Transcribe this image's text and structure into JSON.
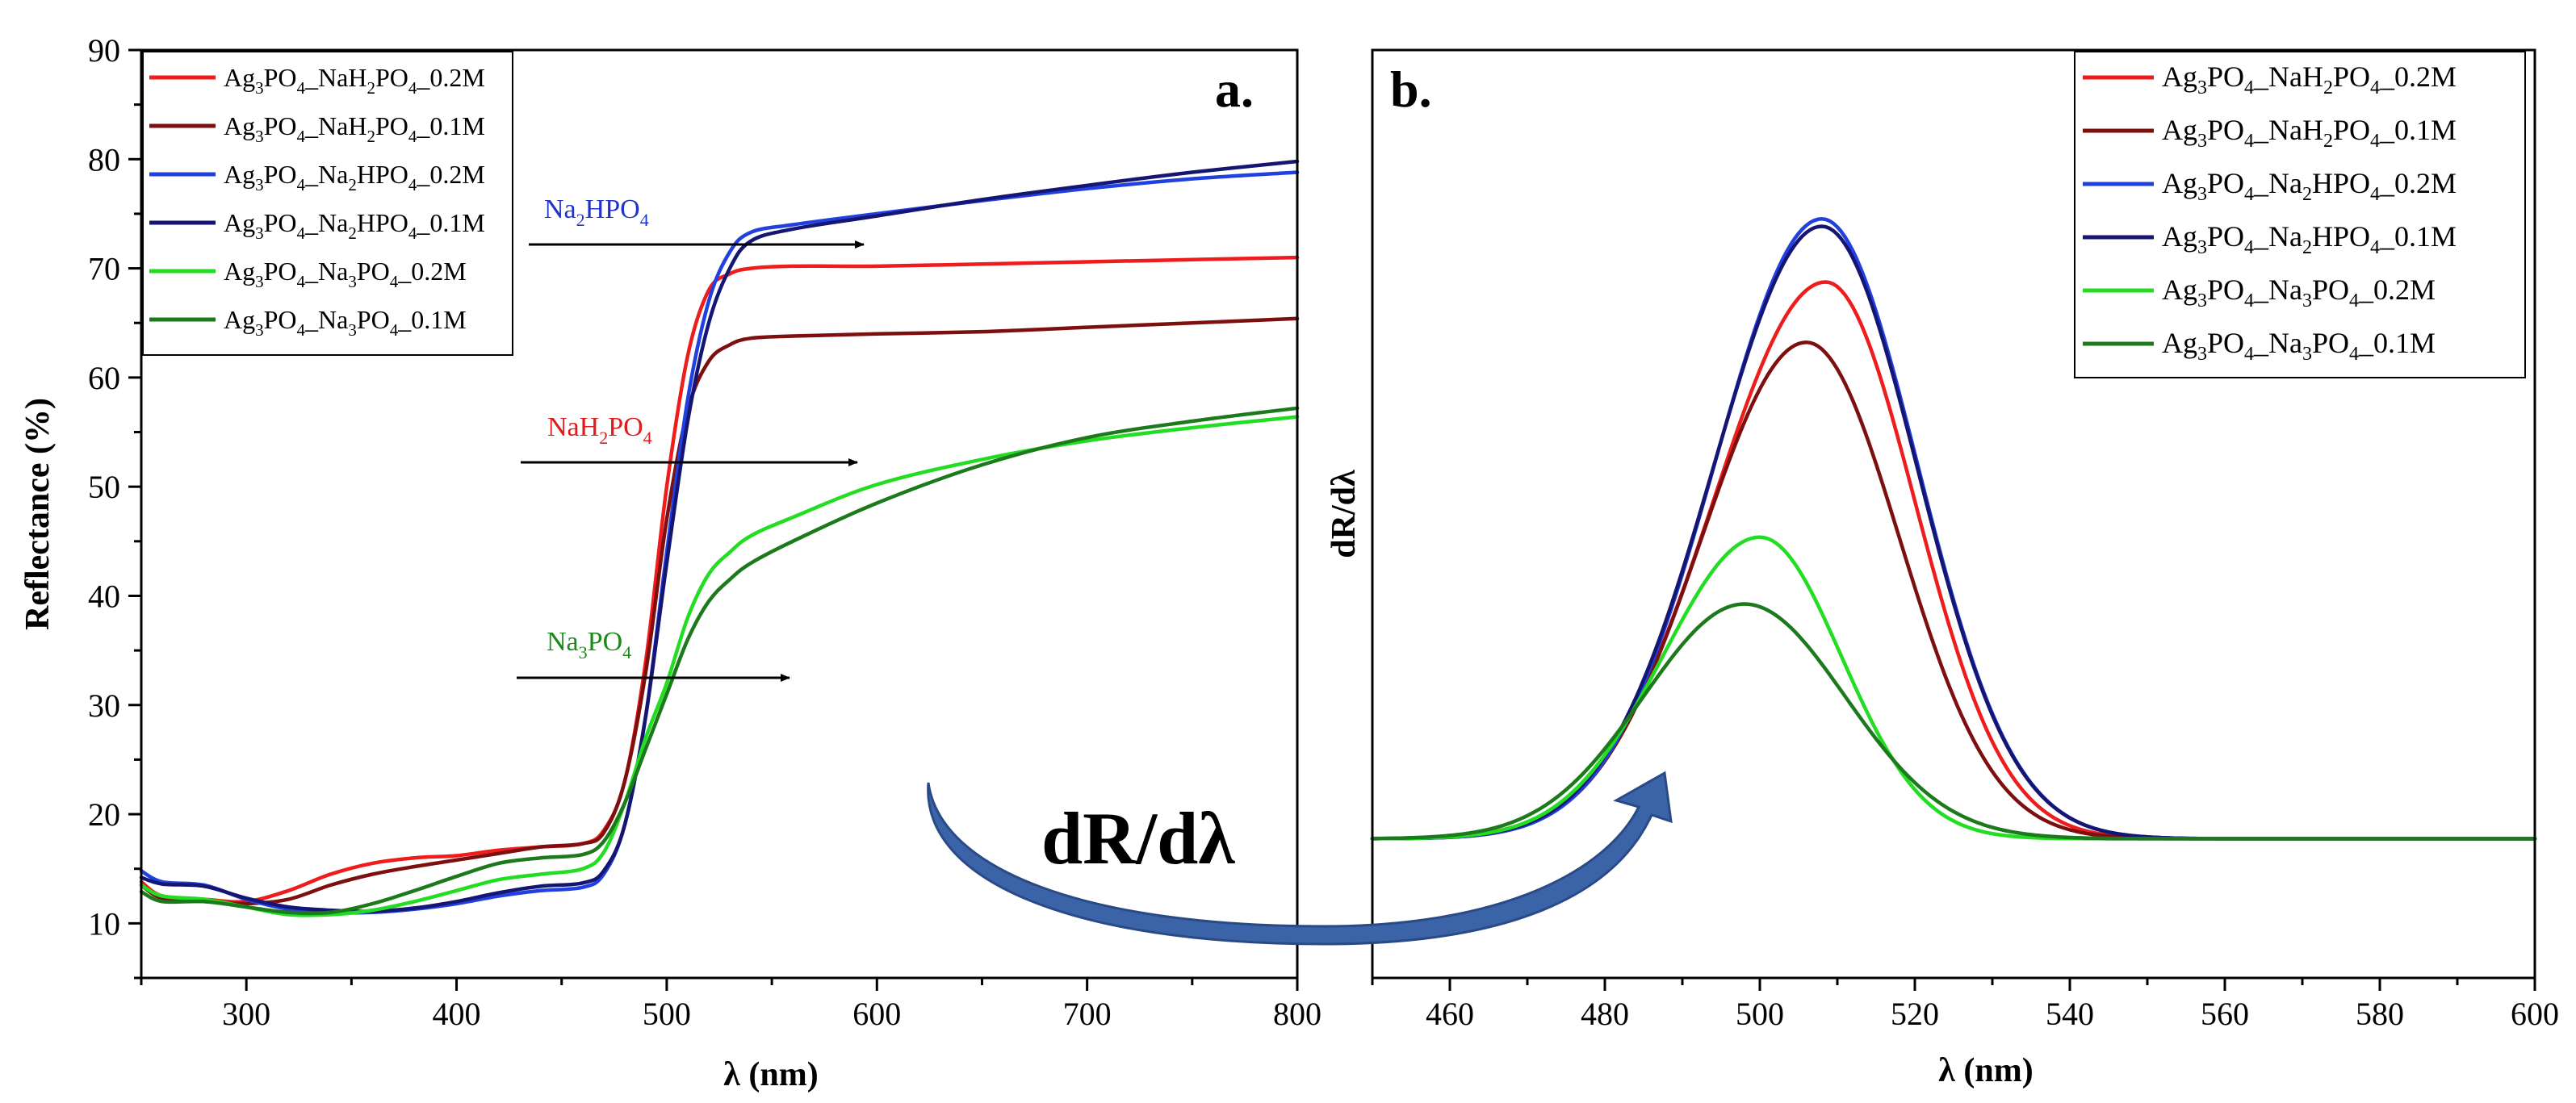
{
  "chart_data": [
    {
      "type": "line",
      "panel_label": "a.",
      "xlabel": "λ (nm)",
      "ylabel": "Reflectance (%)",
      "xlim": [
        250,
        800
      ],
      "ylim": [
        5,
        90
      ],
      "xticks": [
        300,
        400,
        500,
        600,
        700,
        800
      ],
      "yticks": [
        10,
        20,
        30,
        40,
        50,
        60,
        70,
        80,
        90
      ],
      "annotations": [
        {
          "base": "Na",
          "sub1": "2",
          "mid": "HPO",
          "sub2": "4",
          "color": "#2233cc"
        },
        {
          "base": "NaH",
          "sub1": "2",
          "mid": "PO",
          "sub2": "4",
          "color": "#e01b1b"
        },
        {
          "base": "Na",
          "sub1": "3",
          "mid": "PO",
          "sub2": "4",
          "color": "#1a8a1a"
        }
      ],
      "series": [
        {
          "name": "Ag3PO4_NaH2PO4_0.2M",
          "color": "#ee1c1c",
          "x": [
            250,
            260,
            280,
            300,
            320,
            340,
            360,
            380,
            400,
            420,
            440,
            460,
            470,
            480,
            490,
            500,
            510,
            520,
            530,
            540,
            560,
            600,
            650,
            700,
            750,
            800
          ],
          "y": [
            13.8,
            12.5,
            12.2,
            12.0,
            13.0,
            14.5,
            15.5,
            16.0,
            16.2,
            16.7,
            17.0,
            17.3,
            18.5,
            23,
            34,
            50,
            62,
            68,
            69.5,
            70,
            70.2,
            70.2,
            70.4,
            70.6,
            70.8,
            71
          ]
        },
        {
          "name": "Ag3PO4_NaH2PO4_0.1M",
          "color": "#7d0f0f",
          "x": [
            250,
            260,
            280,
            300,
            320,
            340,
            360,
            380,
            400,
            420,
            440,
            460,
            470,
            480,
            490,
            500,
            510,
            520,
            530,
            540,
            560,
            600,
            650,
            700,
            750,
            800
          ],
          "y": [
            13.5,
            12.3,
            12.0,
            11.8,
            12.2,
            13.5,
            14.5,
            15.2,
            15.8,
            16.4,
            17.0,
            17.3,
            18.3,
            23,
            33,
            47,
            57,
            61.5,
            63,
            63.6,
            63.8,
            64.0,
            64.2,
            64.6,
            65.0,
            65.4
          ]
        },
        {
          "name": "Ag3PO4_Na2HPO4_0.2M",
          "color": "#2040e0",
          "x": [
            250,
            260,
            280,
            300,
            320,
            340,
            360,
            380,
            400,
            420,
            440,
            460,
            470,
            480,
            490,
            500,
            510,
            520,
            530,
            540,
            560,
            600,
            650,
            700,
            750,
            800
          ],
          "y": [
            14.8,
            13.8,
            13.5,
            12.2,
            11.3,
            11.0,
            11.0,
            11.3,
            11.8,
            12.5,
            13.0,
            13.3,
            14.5,
            19,
            29,
            44,
            58,
            67,
            71.5,
            73.3,
            74.0,
            75.0,
            76.2,
            77.3,
            78.2,
            78.8
          ]
        },
        {
          "name": "Ag3PO4_Na2HPO4_0.1M",
          "color": "#151573",
          "x": [
            250,
            260,
            280,
            300,
            320,
            340,
            360,
            380,
            400,
            420,
            440,
            460,
            470,
            480,
            490,
            500,
            510,
            520,
            530,
            540,
            560,
            600,
            650,
            700,
            750,
            800
          ],
          "y": [
            14.2,
            13.6,
            13.4,
            12.3,
            11.5,
            11.2,
            11.1,
            11.4,
            12.0,
            12.8,
            13.4,
            13.7,
            14.8,
            19,
            29,
            43,
            56,
            65,
            70,
            72.5,
            73.6,
            74.8,
            76.3,
            77.6,
            78.8,
            79.8
          ]
        },
        {
          "name": "Ag3PO4_Na3PO4_0.2M",
          "color": "#22dd22",
          "x": [
            250,
            260,
            280,
            300,
            320,
            340,
            360,
            380,
            400,
            420,
            440,
            460,
            470,
            480,
            490,
            500,
            510,
            520,
            530,
            540,
            560,
            600,
            650,
            700,
            750,
            800
          ],
          "y": [
            13.5,
            12.5,
            12.2,
            11.5,
            10.8,
            10.8,
            11.2,
            12.0,
            13.0,
            14.0,
            14.5,
            15.0,
            16.5,
            21,
            27,
            32,
            38,
            42,
            44,
            45.5,
            47.2,
            50.2,
            52.5,
            54.2,
            55.4,
            56.4
          ]
        },
        {
          "name": "Ag3PO4_Na3PO4_0.1M",
          "color": "#1c7a1c",
          "x": [
            250,
            260,
            280,
            300,
            320,
            340,
            360,
            380,
            400,
            420,
            440,
            460,
            470,
            480,
            490,
            500,
            510,
            520,
            530,
            540,
            560,
            600,
            650,
            700,
            750,
            800
          ],
          "y": [
            12.9,
            12.0,
            12.0,
            11.5,
            11.0,
            11.0,
            11.8,
            13.0,
            14.3,
            15.5,
            16.0,
            16.3,
            17.5,
            21,
            26,
            31,
            36,
            39.5,
            41.5,
            43,
            45,
            48.5,
            52,
            54.5,
            56,
            57.2
          ]
        }
      ]
    },
    {
      "type": "line",
      "panel_label": "b.",
      "xlabel": "λ (nm)",
      "ylabel": "dR/dλ",
      "xlim": [
        450,
        600
      ],
      "ylim": [
        0,
        100
      ],
      "xticks": [
        460,
        480,
        500,
        520,
        540,
        560,
        580,
        600
      ],
      "series": [
        {
          "name": "Ag3PO4_NaH2PO4_0.2M",
          "color": "#ee1c1c",
          "peak_x": 508.5,
          "peak_y": 75,
          "sigma_left": 14.5,
          "sigma_right": 11.5,
          "baseline": 15
        },
        {
          "name": "Ag3PO4_NaH2PO4_0.1M",
          "color": "#7d0f0f",
          "peak_x": 506,
          "peak_y": 68.5,
          "sigma_left": 13.5,
          "sigma_right": 12,
          "baseline": 15
        },
        {
          "name": "Ag3PO4_Na2HPO4_0.2M",
          "color": "#2040e0",
          "peak_x": 508,
          "peak_y": 81.8,
          "sigma_left": 13.8,
          "sigma_right": 12.3,
          "baseline": 15
        },
        {
          "name": "Ag3PO4_Na2HPO4_0.1M",
          "color": "#151573",
          "peak_x": 508,
          "peak_y": 81,
          "sigma_left": 14,
          "sigma_right": 12.3,
          "baseline": 15
        },
        {
          "name": "Ag3PO4_Na3PO4_0.2M",
          "color": "#22dd22",
          "peak_x": 500,
          "peak_y": 47.5,
          "sigma_left": 12.5,
          "sigma_right": 10.5,
          "baseline": 15
        },
        {
          "name": "Ag3PO4_Na3PO4_0.1M",
          "color": "#1c7a1c",
          "peak_x": 498,
          "peak_y": 40.3,
          "sigma_left": 13,
          "sigma_right": 13,
          "baseline": 15
        }
      ]
    }
  ],
  "legend": [
    {
      "color": "#ee1c1c",
      "parts": [
        [
          "Ag",
          ""
        ],
        [
          "3",
          "s"
        ],
        [
          "PO",
          ""
        ],
        [
          "4",
          "s"
        ],
        [
          "_NaH",
          ""
        ],
        [
          "2",
          "s"
        ],
        [
          "PO",
          ""
        ],
        [
          "4",
          "s"
        ],
        [
          "_0.2M",
          ""
        ]
      ]
    },
    {
      "color": "#7d0f0f",
      "parts": [
        [
          "Ag",
          ""
        ],
        [
          "3",
          "s"
        ],
        [
          "PO",
          ""
        ],
        [
          "4",
          "s"
        ],
        [
          "_NaH",
          ""
        ],
        [
          "2",
          "s"
        ],
        [
          "PO",
          ""
        ],
        [
          "4",
          "s"
        ],
        [
          "_0.1M",
          ""
        ]
      ]
    },
    {
      "color": "#2040e0",
      "parts": [
        [
          "Ag",
          ""
        ],
        [
          "3",
          "s"
        ],
        [
          "PO",
          ""
        ],
        [
          "4",
          "s"
        ],
        [
          "_Na",
          ""
        ],
        [
          "2",
          "s"
        ],
        [
          "HPO",
          ""
        ],
        [
          "4",
          "s"
        ],
        [
          "_0.2M",
          ""
        ]
      ]
    },
    {
      "color": "#151573",
      "parts": [
        [
          "Ag",
          ""
        ],
        [
          "3",
          "s"
        ],
        [
          "PO",
          ""
        ],
        [
          "4",
          "s"
        ],
        [
          "_Na",
          ""
        ],
        [
          "2",
          "s"
        ],
        [
          "HPO",
          ""
        ],
        [
          "4",
          "s"
        ],
        [
          "_0.1M",
          ""
        ]
      ]
    },
    {
      "color": "#22dd22",
      "parts": [
        [
          "Ag",
          ""
        ],
        [
          "3",
          "s"
        ],
        [
          "PO",
          ""
        ],
        [
          "4",
          "s"
        ],
        [
          "_Na",
          ""
        ],
        [
          "3",
          "s"
        ],
        [
          "PO",
          ""
        ],
        [
          "4",
          "s"
        ],
        [
          "_0.2M",
          ""
        ]
      ]
    },
    {
      "color": "#1c7a1c",
      "parts": [
        [
          "Ag",
          ""
        ],
        [
          "3",
          "s"
        ],
        [
          "PO",
          ""
        ],
        [
          "4",
          "s"
        ],
        [
          "_Na",
          ""
        ],
        [
          "3",
          "s"
        ],
        [
          "PO",
          ""
        ],
        [
          "4",
          "s"
        ],
        [
          "_0.1M",
          ""
        ]
      ]
    }
  ],
  "center_label": "dR/dλ",
  "colors": {
    "arrow": "#3b63a8",
    "arrow_dark": "#2a4a86"
  }
}
